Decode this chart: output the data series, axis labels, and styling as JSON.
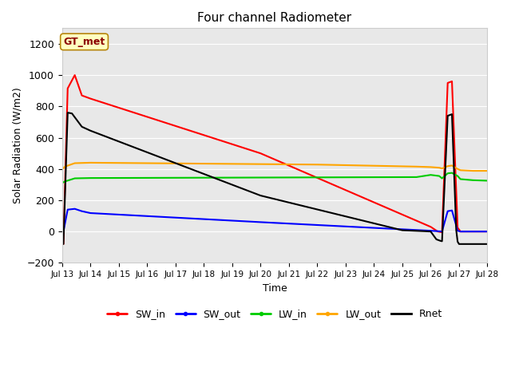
{
  "title": "Four channel Radiometer",
  "xlabel": "Time",
  "ylabel": "Solar Radiation (W/m2)",
  "ylim": [
    -200,
    1300
  ],
  "yticks": [
    -200,
    0,
    200,
    400,
    600,
    800,
    1000,
    1200
  ],
  "annotation_text": "GT_met",
  "annotation_color": "#8B0000",
  "annotation_bg": "#FFFFC0",
  "annotation_border": "#B8860B",
  "plot_bg_color": "#E8E8E8",
  "fig_bg_color": "#FFFFFF",
  "x_start": 13,
  "x_end": 28,
  "series": {
    "SW_in": {
      "color": "#FF0000",
      "points": [
        [
          13.0,
          0
        ],
        [
          13.05,
          -80
        ],
        [
          13.2,
          915
        ],
        [
          13.45,
          1000
        ],
        [
          13.7,
          870
        ],
        [
          14.0,
          850
        ],
        [
          20.0,
          500
        ],
        [
          26.0,
          30
        ],
        [
          26.25,
          0
        ],
        [
          26.4,
          -5
        ],
        [
          26.6,
          950
        ],
        [
          26.75,
          960
        ],
        [
          26.95,
          25
        ],
        [
          27.05,
          0
        ],
        [
          28.0,
          0
        ]
      ]
    },
    "SW_out": {
      "color": "#0000FF",
      "points": [
        [
          13.0,
          0
        ],
        [
          13.05,
          0
        ],
        [
          13.2,
          140
        ],
        [
          13.45,
          145
        ],
        [
          13.7,
          130
        ],
        [
          14.0,
          118
        ],
        [
          20.0,
          60
        ],
        [
          26.0,
          5
        ],
        [
          26.25,
          2
        ],
        [
          26.4,
          0
        ],
        [
          26.6,
          130
        ],
        [
          26.75,
          135
        ],
        [
          26.95,
          5
        ],
        [
          27.05,
          0
        ],
        [
          28.0,
          0
        ]
      ]
    },
    "LW_in": {
      "color": "#00CC00",
      "points": [
        [
          13.0,
          310
        ],
        [
          13.1,
          320
        ],
        [
          13.45,
          340
        ],
        [
          14.0,
          342
        ],
        [
          25.5,
          348
        ],
        [
          26.0,
          362
        ],
        [
          26.3,
          355
        ],
        [
          26.4,
          340
        ],
        [
          26.6,
          372
        ],
        [
          26.75,
          375
        ],
        [
          26.95,
          355
        ],
        [
          27.05,
          335
        ],
        [
          27.5,
          328
        ],
        [
          28.0,
          325
        ]
      ]
    },
    "LW_out": {
      "color": "#FFA500",
      "points": [
        [
          13.0,
          395
        ],
        [
          13.1,
          415
        ],
        [
          13.45,
          437
        ],
        [
          14.0,
          440
        ],
        [
          22.0,
          428
        ],
        [
          25.5,
          415
        ],
        [
          26.0,
          412
        ],
        [
          26.3,
          408
        ],
        [
          26.4,
          403
        ],
        [
          26.6,
          418
        ],
        [
          26.75,
          422
        ],
        [
          26.95,
          400
        ],
        [
          27.05,
          392
        ],
        [
          27.5,
          388
        ],
        [
          28.0,
          388
        ]
      ]
    },
    "Rnet": {
      "color": "#000000",
      "points": [
        [
          13.0,
          -80
        ],
        [
          13.05,
          -80
        ],
        [
          13.2,
          760
        ],
        [
          13.35,
          755
        ],
        [
          13.7,
          670
        ],
        [
          14.0,
          645
        ],
        [
          20.0,
          230
        ],
        [
          25.0,
          8
        ],
        [
          25.8,
          2
        ],
        [
          26.0,
          0
        ],
        [
          26.2,
          -50
        ],
        [
          26.35,
          -60
        ],
        [
          26.4,
          -62
        ],
        [
          26.6,
          740
        ],
        [
          26.75,
          750
        ],
        [
          26.9,
          10
        ],
        [
          26.95,
          -65
        ],
        [
          27.0,
          -80
        ],
        [
          27.05,
          -80
        ],
        [
          28.0,
          -80
        ]
      ]
    }
  },
  "legend_entries": [
    "SW_in",
    "SW_out",
    "LW_in",
    "LW_out",
    "Rnet"
  ],
  "legend_colors": [
    "#FF0000",
    "#0000FF",
    "#00CC00",
    "#FFA500",
    "#000000"
  ],
  "xtick_labels": [
    "Jul 13",
    "Jul 14",
    "Jul 15",
    "Jul 16",
    "Jul 17",
    "Jul 18",
    "Jul 19",
    "Jul 20",
    "Jul 21",
    "Jul 22",
    "Jul 23",
    "Jul 24",
    "Jul 25",
    "Jul 26",
    "Jul 27",
    "Jul 28"
  ],
  "xtick_positions": [
    13,
    14,
    15,
    16,
    17,
    18,
    19,
    20,
    21,
    22,
    23,
    24,
    25,
    26,
    27,
    28
  ]
}
